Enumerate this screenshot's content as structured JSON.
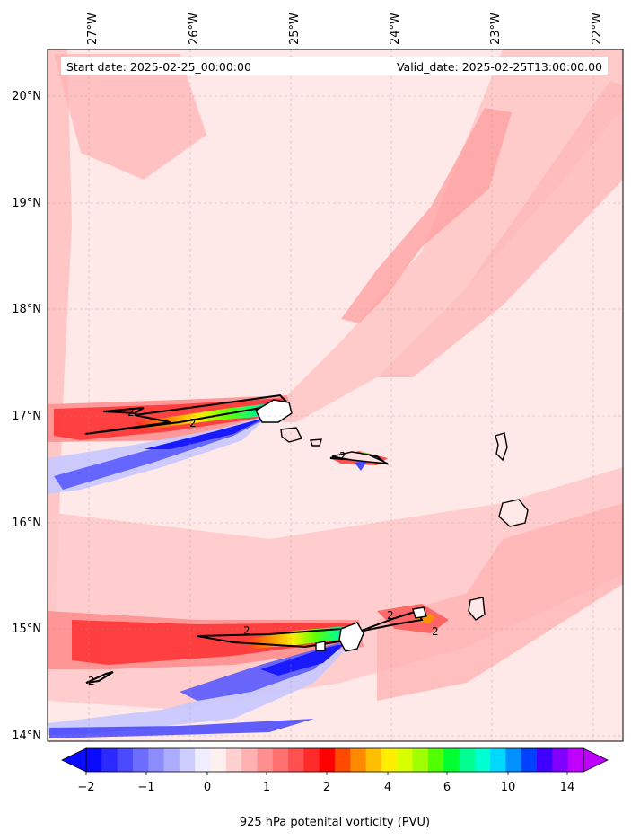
{
  "header": {
    "start_date": "Start date: 2025-02-25_00:00:00",
    "valid_date": "Valid_date: 2025-02-25T13:00:00.00"
  },
  "axes": {
    "lon_ticks": [
      "27°W",
      "26°W",
      "25°W",
      "24°W",
      "23°W",
      "22°W"
    ],
    "lat_ticks": [
      "20°N",
      "19°N",
      "18°N",
      "17°N",
      "16°N",
      "15°N",
      "14°N"
    ],
    "lon_range": [
      -27.4,
      -21.8
    ],
    "lat_range": [
      13.95,
      20.45
    ],
    "grid": true
  },
  "contour_labels": [
    "2",
    "2",
    "2",
    "2",
    "2",
    "2",
    "2"
  ],
  "colorbar": {
    "label": "925 hPa potenital vorticity (PVU)",
    "tick_labels": [
      "−2",
      "−1",
      "0",
      "1",
      "2",
      "4",
      "6",
      "10",
      "14"
    ],
    "extend": "both",
    "colors": [
      "#0a0aff",
      "#2a2aff",
      "#4a4aff",
      "#6c6cff",
      "#8c8cff",
      "#adadff",
      "#cdcdff",
      "#eeeeff",
      "#fff0f0",
      "#ffd0d0",
      "#ffb0b0",
      "#ff9090",
      "#ff7070",
      "#ff5050",
      "#ff2a2a",
      "#ff0000",
      "#ff4a00",
      "#ff8a00",
      "#ffbe00",
      "#ffee00",
      "#d8ff00",
      "#a0ff00",
      "#50ff00",
      "#00ff30",
      "#00ff90",
      "#00ffd0",
      "#00d8ff",
      "#0090ff",
      "#0040ff",
      "#4000ff",
      "#8000ff",
      "#c000ff"
    ]
  },
  "colors": {
    "background_pv": "#ffe8e8",
    "light_band": "#ffc8c8",
    "positive_band": "#ff9b9b",
    "strong_positive": "#ff3030",
    "negative": "#3030ff",
    "coast": "#000000"
  }
}
